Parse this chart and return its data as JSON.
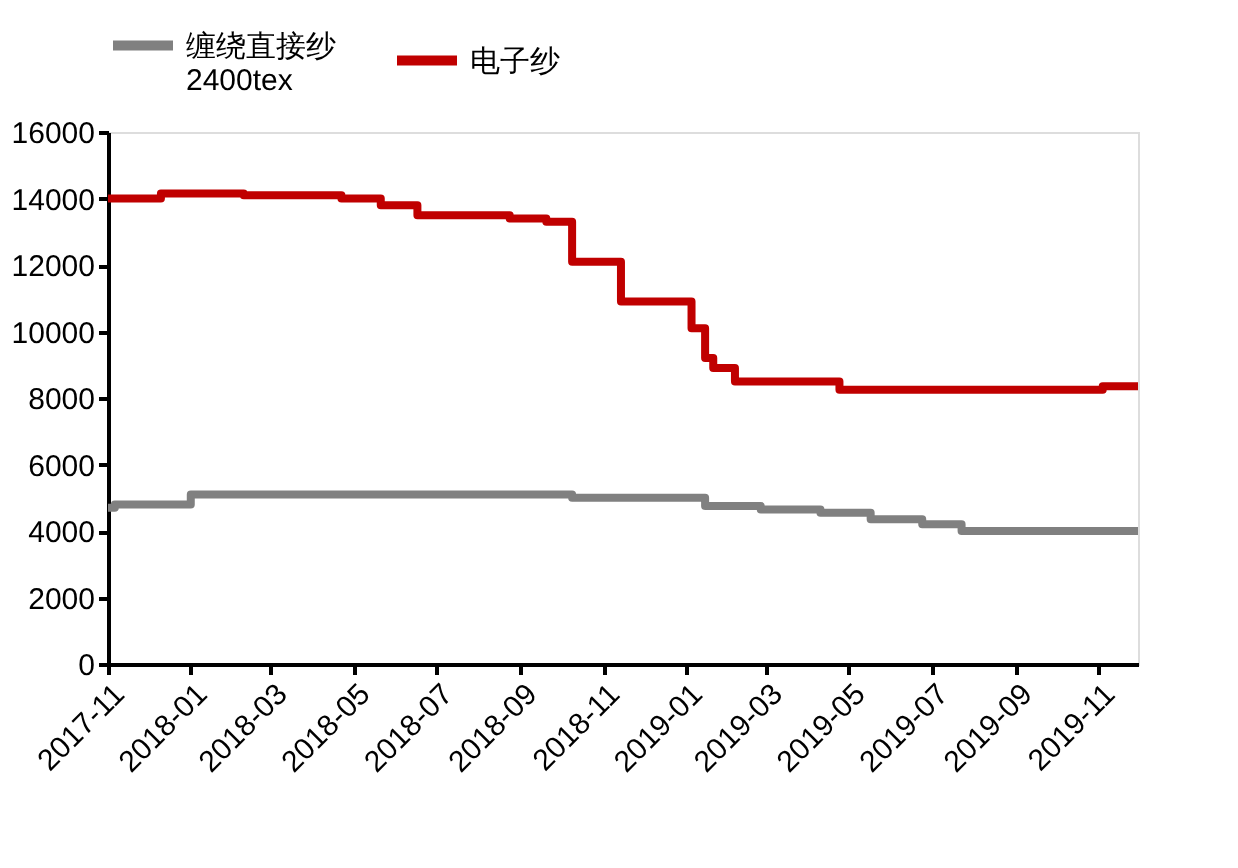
{
  "chart_data": {
    "type": "step",
    "legend": "top",
    "grid": false,
    "xlim": [
      "2017-11-01",
      "2019-11-30"
    ],
    "xticks": [
      "2017-11",
      "2018-01",
      "2018-03",
      "2018-05",
      "2018-07",
      "2018-09",
      "2018-11",
      "2019-01",
      "2019-03",
      "2019-05",
      "2019-07",
      "2019-09",
      "2019-11"
    ],
    "ylim": [
      0,
      16000
    ],
    "yticks": [
      0,
      2000,
      4000,
      6000,
      8000,
      10000,
      12000,
      14000,
      16000
    ],
    "series": [
      {
        "name": "缠绕直接纱 2400tex",
        "color": "#808080",
        "x": [
          "2017-11-01",
          "2017-11-06",
          "2018-01-01",
          "2018-10-09",
          "2019-01-15",
          "2019-02-25",
          "2019-04-10",
          "2019-05-17",
          "2019-06-24",
          "2019-07-23",
          "2019-11-30"
        ],
        "values": [
          4700,
          4800,
          5100,
          5000,
          4750,
          4650,
          4550,
          4350,
          4200,
          4000,
          4000
        ]
      },
      {
        "name": "电子纱",
        "color": "#c00000",
        "x": [
          "2017-11-01",
          "2017-12-10",
          "2018-02-09",
          "2018-04-22",
          "2018-05-21",
          "2018-06-17",
          "2018-08-24",
          "2018-09-20",
          "2018-10-09",
          "2018-11-14",
          "2019-01-05",
          "2019-01-15",
          "2019-01-21",
          "2019-02-06",
          "2019-04-24",
          "2019-11-04",
          "2019-11-30"
        ],
        "values": [
          14000,
          14150,
          14100,
          14000,
          13800,
          13500,
          13400,
          13300,
          12100,
          10900,
          10100,
          9200,
          8900,
          8500,
          8250,
          8350,
          8350
        ]
      }
    ]
  }
}
